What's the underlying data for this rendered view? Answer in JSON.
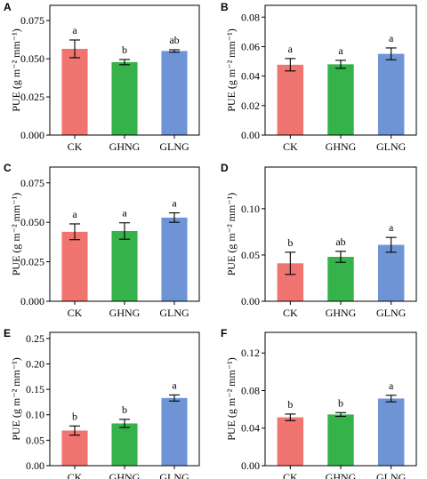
{
  "colors": {
    "CK": "#f07470",
    "GHNG": "#36b24a",
    "GLNG": "#6f94d6"
  },
  "chart_data": [
    {
      "type": "bar",
      "panel": "A",
      "categories": [
        "CK",
        "GHNG",
        "GLNG"
      ],
      "values": [
        0.0565,
        0.0478,
        0.0551
      ],
      "errors": [
        0.0058,
        0.0017,
        0.0008
      ],
      "letters": [
        "a",
        "b",
        "ab"
      ],
      "ylabel": "PUE (g m⁻² mm⁻¹)",
      "ylim": [
        0,
        0.085
      ],
      "yticks": [
        0,
        0.025,
        0.05,
        0.075
      ],
      "ytick_labels": [
        "0.000",
        "0.025",
        "0.050",
        "0.075"
      ]
    },
    {
      "type": "bar",
      "panel": "B",
      "categories": [
        "CK",
        "GHNG",
        "GLNG"
      ],
      "values": [
        0.0477,
        0.048,
        0.0551
      ],
      "errors": [
        0.0042,
        0.0027,
        0.004
      ],
      "letters": [
        "a",
        "a",
        "a"
      ],
      "ylabel": "PUE (g m⁻² mm⁻¹)",
      "ylim": [
        0,
        0.088
      ],
      "yticks": [
        0,
        0.02,
        0.04,
        0.06,
        0.08
      ],
      "ytick_labels": [
        "0.00",
        "0.02",
        "0.04",
        "0.06",
        "0.08"
      ]
    },
    {
      "type": "bar",
      "panel": "C",
      "categories": [
        "CK",
        "GHNG",
        "GLNG"
      ],
      "values": [
        0.044,
        0.0445,
        0.053
      ],
      "errors": [
        0.005,
        0.0052,
        0.003
      ],
      "letters": [
        "a",
        "a",
        "a"
      ],
      "ylabel": "PUE (g m⁻² mm⁻¹)",
      "ylim": [
        0,
        0.085
      ],
      "yticks": [
        0,
        0.025,
        0.05,
        0.075
      ],
      "ytick_labels": [
        "0.000",
        "0.025",
        "0.050",
        "0.075"
      ]
    },
    {
      "type": "bar",
      "panel": "D",
      "categories": [
        "CK",
        "GHNG",
        "GLNG"
      ],
      "values": [
        0.041,
        0.048,
        0.061
      ],
      "errors": [
        0.012,
        0.006,
        0.008
      ],
      "letters": [
        "b",
        "ab",
        "a"
      ],
      "ylabel": "PUE (g m⁻² mm⁻¹)",
      "ylim": [
        0,
        0.145
      ],
      "yticks": [
        0,
        0.05,
        0.1
      ],
      "ytick_labels": [
        "0.00",
        "0.05",
        "0.10"
      ]
    },
    {
      "type": "bar",
      "panel": "E",
      "categories": [
        "CK",
        "GHNG",
        "GLNG"
      ],
      "values": [
        0.069,
        0.083,
        0.133
      ],
      "errors": [
        0.009,
        0.008,
        0.006
      ],
      "letters": [
        "b",
        "b",
        "a"
      ],
      "ylabel": "PUE (g m⁻² mm⁻¹)",
      "ylim": [
        0,
        0.262
      ],
      "yticks": [
        0,
        0.05,
        0.1,
        0.15,
        0.2,
        0.25
      ],
      "ytick_labels": [
        "0.00",
        "0.05",
        "0.10",
        "0.15",
        "0.20",
        "0.25"
      ]
    },
    {
      "type": "bar",
      "panel": "F",
      "categories": [
        "CK",
        "GHNG",
        "GLNG"
      ],
      "values": [
        0.0515,
        0.0545,
        0.0715
      ],
      "errors": [
        0.0035,
        0.002,
        0.0035
      ],
      "letters": [
        "b",
        "b",
        "a"
      ],
      "ylabel": "PUE (g m⁻² mm⁻¹)",
      "ylim": [
        0,
        0.142
      ],
      "yticks": [
        0,
        0.04,
        0.08,
        0.12
      ],
      "ytick_labels": [
        "0.00",
        "0.04",
        "0.08",
        "0.12"
      ]
    }
  ]
}
